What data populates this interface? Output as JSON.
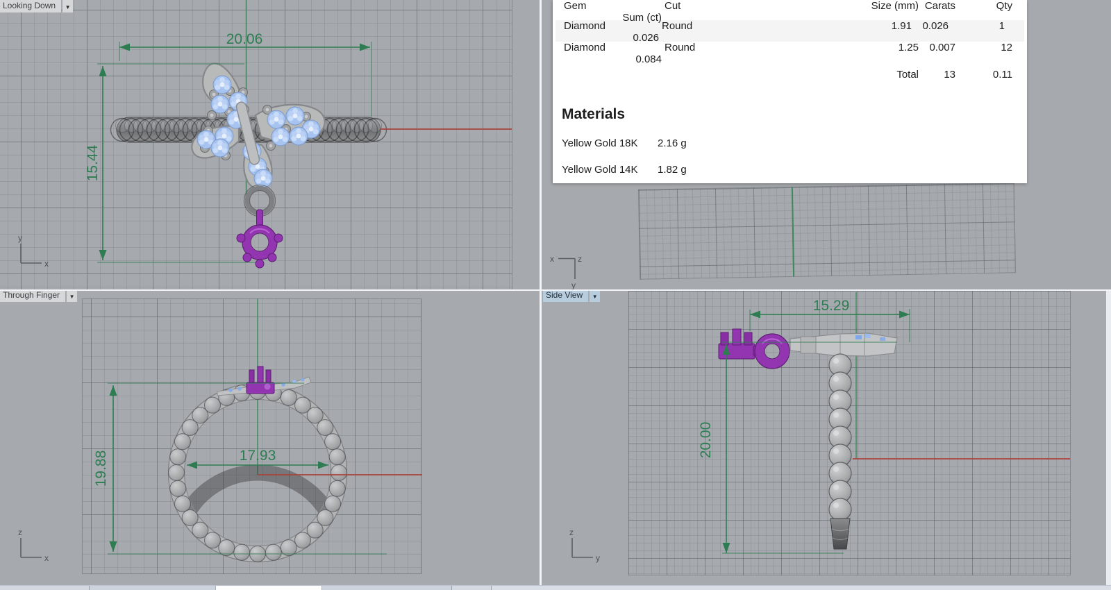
{
  "gem_table": {
    "headers": {
      "gem": "Gem",
      "cut": "Cut",
      "size": "Size (mm)",
      "carats": "Carats",
      "qty": "Qty",
      "sum": "Sum (ct)"
    },
    "rows": [
      {
        "gem": "Diamond",
        "cut": "Round",
        "size": "1.91",
        "carats": "0.026",
        "qty": "1",
        "sum": "0.026"
      },
      {
        "gem": "Diamond",
        "cut": "Round",
        "size": "1.25",
        "carats": "0.007",
        "qty": "12",
        "sum": "0.084"
      }
    ],
    "total": {
      "label": "Total",
      "qty": "13",
      "sum": "0.11"
    }
  },
  "materials": {
    "title": "Materials",
    "items": [
      {
        "name": "Yellow Gold 18K",
        "weight": "2.16 g"
      },
      {
        "name": "Yellow Gold 14K",
        "weight": "1.82 g"
      }
    ]
  },
  "viewports": {
    "top_left": {
      "label": "Looking Down",
      "dims": {
        "width": "20.06",
        "height": "15.44"
      },
      "axes": {
        "v": "y",
        "h": "x"
      }
    },
    "top_right": {
      "axes": {
        "h1": "x",
        "h2": "z",
        "down": "y"
      }
    },
    "bottom_left": {
      "label": "Through Finger",
      "dims": {
        "width": "17.93",
        "height": "19.88"
      },
      "axes": {
        "v": "z",
        "h": "x"
      }
    },
    "bottom_right": {
      "label": "Side View",
      "dims": {
        "width": "15.29",
        "height": "20.00"
      },
      "axes": {
        "v": "z",
        "h": "y"
      }
    }
  },
  "icons": {
    "dropdown_arrow": "▼"
  },
  "colors": {
    "dimension_green": "#2e7d52",
    "axis_red": "#a8443e",
    "axis_green": "#3c8a5c",
    "gem_blue": "#a6c4ef",
    "charm_purple": "#9335b0",
    "metal_gray": "#b4b6b8",
    "active_label_bg": "#b7cdde",
    "label_bg": "#d5d7d9",
    "viewport_bg": "#a6a9ad"
  }
}
